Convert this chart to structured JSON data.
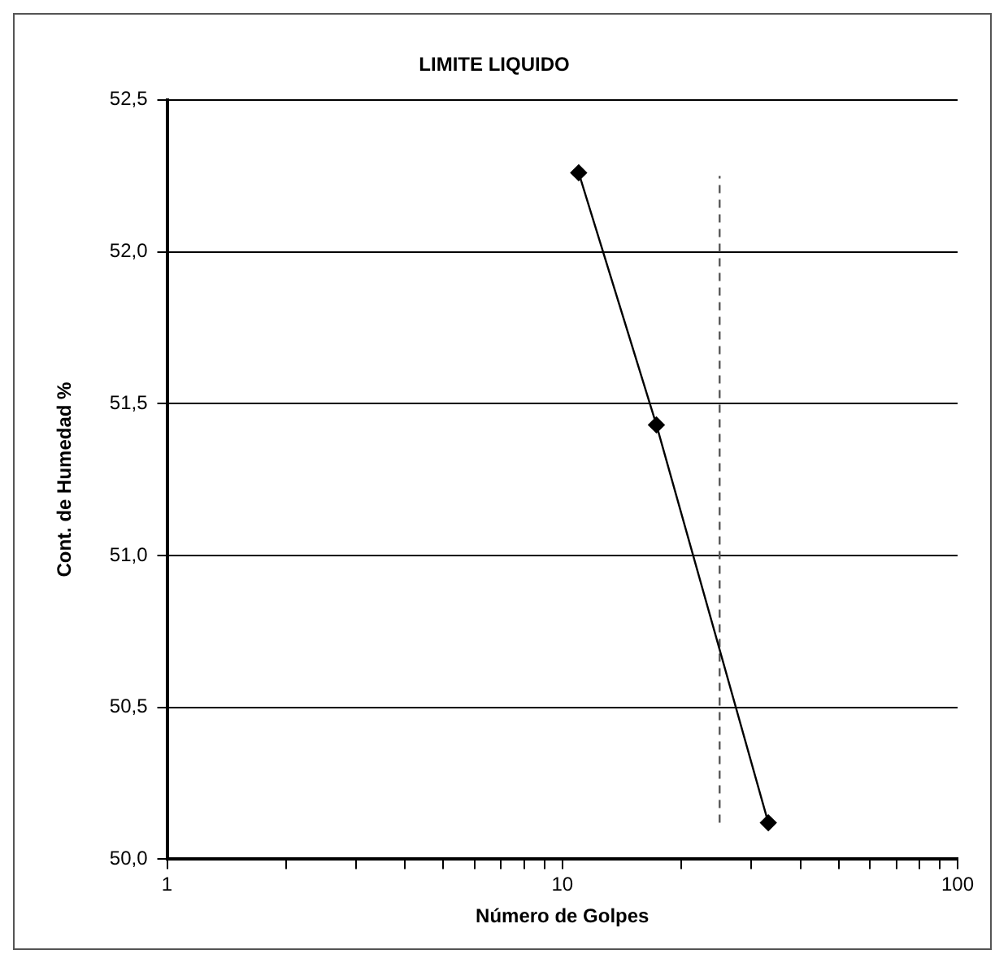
{
  "chart_data": {
    "type": "scatter",
    "title": "LIMITE LIQUIDO",
    "xlabel": "Número de Golpes",
    "ylabel": "Cont. de Humedad %",
    "log": "x",
    "grid": "y",
    "legend": false,
    "xlim": [
      1,
      100
    ],
    "xticks": [
      1,
      {
        "value": 2,
        "label": null
      },
      {
        "value": 3,
        "label": null
      },
      {
        "value": 4,
        "label": null
      },
      {
        "value": 5,
        "label": null
      },
      {
        "value": 6,
        "label": null
      },
      {
        "value": 7,
        "label": null
      },
      {
        "value": 8,
        "label": null
      },
      {
        "value": 9,
        "label": null
      },
      10,
      {
        "value": 20,
        "label": null
      },
      {
        "value": 30,
        "label": null
      },
      {
        "value": 40,
        "label": null
      },
      {
        "value": 50,
        "label": null
      },
      {
        "value": 60,
        "label": null
      },
      {
        "value": 70,
        "label": null
      },
      {
        "value": 80,
        "label": null
      },
      {
        "value": 90,
        "label": null
      },
      100
    ],
    "ylim": [
      50,
      52.5
    ],
    "yticks": [
      {
        "value": 50,
        "label": "50,0"
      },
      {
        "value": 50.5,
        "label": "50,5"
      },
      {
        "value": 51,
        "label": "51,0"
      },
      {
        "value": 51.5,
        "label": "51,5"
      },
      {
        "value": 52,
        "label": "52,0"
      },
      {
        "value": 52.5,
        "label": "52,5"
      }
    ],
    "series": [
      {
        "type": "line",
        "color": "#000000",
        "marker": "diamond",
        "line_style": "solid",
        "x": [
          11,
          17.3,
          33.2
        ],
        "values": [
          52.26,
          51.43,
          50.12
        ]
      },
      {
        "type": "line",
        "color": "#595959",
        "marker": "none",
        "line_style": "dashed",
        "x": [
          25,
          25
        ],
        "values": [
          50.12,
          52.25
        ]
      }
    ]
  }
}
